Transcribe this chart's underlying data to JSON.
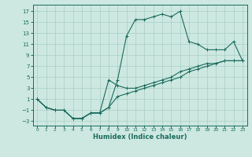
{
  "xlabel": "Humidex (Indice chaleur)",
  "bg_color": "#cde8e0",
  "grid_color": "#a8cec6",
  "line_color": "#1a6b5e",
  "xlim": [
    -0.5,
    23.5
  ],
  "ylim": [
    -3.8,
    18.2
  ],
  "xticks": [
    0,
    1,
    2,
    3,
    4,
    5,
    6,
    7,
    8,
    9,
    10,
    11,
    12,
    13,
    14,
    15,
    16,
    17,
    18,
    19,
    20,
    21,
    22,
    23
  ],
  "yticks": [
    -3,
    -1,
    1,
    3,
    5,
    7,
    9,
    11,
    13,
    15,
    17
  ],
  "line1_x": [
    0,
    1,
    2,
    3,
    4,
    5,
    6,
    7,
    8,
    9,
    10,
    11,
    12,
    13,
    14,
    15,
    16,
    17,
    18,
    19,
    20,
    21,
    22,
    23
  ],
  "line1_y": [
    1,
    -0.5,
    -1,
    -1,
    -2.5,
    -2.5,
    -1.5,
    -1.5,
    -0.5,
    4.5,
    12.5,
    15.5,
    15.5,
    16,
    16.5,
    16,
    17,
    11.5,
    11,
    10,
    10,
    10,
    11.5,
    8
  ],
  "line2_x": [
    0,
    1,
    2,
    3,
    4,
    5,
    6,
    7,
    8,
    9,
    10,
    11,
    12,
    13,
    14,
    15,
    16,
    17,
    18,
    19,
    20,
    21,
    22,
    23
  ],
  "line2_y": [
    1,
    -0.5,
    -1,
    -1,
    -2.5,
    -2.5,
    -1.5,
    -1.5,
    4.5,
    3.5,
    3.0,
    3.0,
    3.5,
    4.0,
    4.5,
    5.0,
    6.0,
    6.5,
    7.0,
    7.5,
    7.5,
    8.0,
    8.0,
    8.0
  ],
  "line3_x": [
    0,
    1,
    2,
    3,
    4,
    5,
    6,
    7,
    8,
    9,
    10,
    11,
    12,
    13,
    14,
    15,
    16,
    17,
    18,
    19,
    20,
    21,
    22,
    23
  ],
  "line3_y": [
    1,
    -0.5,
    -1,
    -1,
    -2.5,
    -2.5,
    -1.5,
    -1.5,
    -0.5,
    1.5,
    2.0,
    2.5,
    3.0,
    3.5,
    4.0,
    4.5,
    5.0,
    6.0,
    6.5,
    7.0,
    7.5,
    8.0,
    8.0,
    8.0
  ]
}
